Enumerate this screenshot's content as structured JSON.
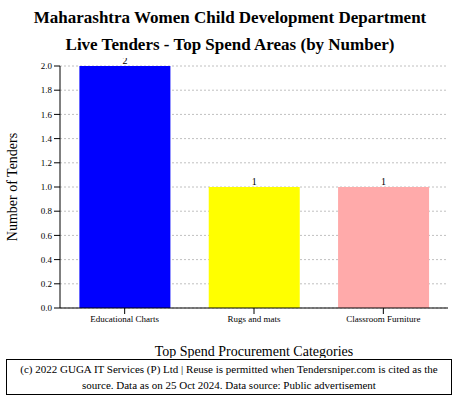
{
  "chart_data": {
    "type": "bar",
    "title": "Maharashtra Women Child Development Department",
    "subtitle": "Live Tenders - Top Spend Areas (by Number)",
    "x_label": "Top Spend Procurement Categories",
    "y_label": "Number of Tenders",
    "categories": [
      "Educational Charts",
      "Rugs and mats",
      "Classroom Furniture"
    ],
    "values": [
      2,
      1,
      1
    ],
    "colors": [
      "#0000ff",
      "#ffff00",
      "#ffaaaa"
    ],
    "ylim": [
      0,
      2
    ],
    "yticks": [
      {
        "value": 0,
        "label": "0.0"
      },
      0.2,
      0.4,
      0.6,
      0.8,
      {
        "value": 1,
        "label": "1.0"
      },
      1.2,
      1.4,
      1.6,
      1.8,
      {
        "value": 2,
        "label": "2.0"
      }
    ],
    "grid": true,
    "data_labels": true,
    "annotations": [
      "(c) 2022 GUGA IT Services (P) Ltd | Reuse is permitted when Tendersniper.com is cited as the source. Data as on 25 Oct 2024. Data source: Public advertisement"
    ]
  }
}
